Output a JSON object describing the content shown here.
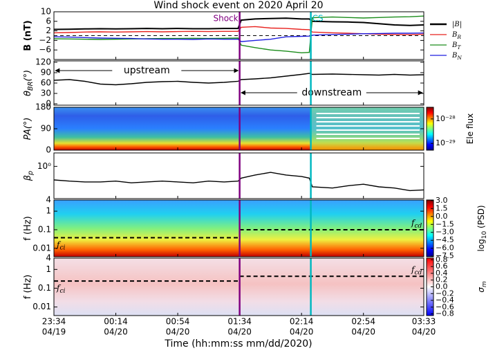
{
  "figure": {
    "title": "Wind shock event on 2020 April 20",
    "xlabel": "Time (hh:mm:ss mm/dd/2020)",
    "xlim": [
      "23:34",
      "03:33"
    ],
    "xticks": [
      {
        "time": "23:34",
        "date": "04/19"
      },
      {
        "time": "00:14",
        "date": "04/20"
      },
      {
        "time": "00:54",
        "date": "04/20"
      },
      {
        "time": "01:34",
        "date": "04/20"
      },
      {
        "time": "02:14",
        "date": "04/20"
      },
      {
        "time": "02:54",
        "date": "04/20"
      },
      {
        "time": "03:33",
        "date": "04/20"
      }
    ],
    "events": [
      {
        "label": "Shock",
        "time": "01:34",
        "color": "#800080"
      },
      {
        "label": "CS",
        "time": "02:20",
        "color": "#00b8c0"
      }
    ]
  },
  "chart_data": [
    {
      "type": "line",
      "ylabel": [
        {
          "t": "B (nT)"
        }
      ],
      "ylim": [
        -10,
        10
      ],
      "yticks": [
        10,
        6,
        2,
        {
          "value": -2,
          "label": "−2"
        },
        {
          "value": -6,
          "label": "−6"
        }
      ],
      "zero_line": true,
      "legend": "right-outside",
      "x": [
        "23:34",
        "23:44",
        "23:54",
        "00:04",
        "00:14",
        "00:24",
        "00:34",
        "00:44",
        "00:54",
        "01:04",
        "01:14",
        "01:24",
        "01:33",
        "01:35",
        "01:44",
        "01:54",
        "02:04",
        "02:14",
        "02:19",
        "02:21",
        "02:34",
        "02:44",
        "02:54",
        "03:04",
        "03:14",
        "03:24",
        "03:33"
      ],
      "series": [
        {
          "name": [
            {
              "t": "|B|"
            }
          ],
          "color": "#000000",
          "values": [
            2.6,
            2.7,
            2.8,
            2.9,
            2.8,
            2.9,
            3.0,
            2.9,
            3.0,
            2.9,
            2.9,
            3.0,
            3.0,
            6.5,
            7.0,
            7.2,
            7.3,
            7.0,
            7.0,
            6.0,
            5.8,
            5.7,
            5.5,
            5.0,
            4.5,
            4.3,
            4.5
          ]
        },
        {
          "name": [
            {
              "t": "B"
            },
            {
              "t": "R",
              "sub": true
            }
          ],
          "color": "#e8231f",
          "values": [
            1.2,
            1.3,
            1.5,
            1.6,
            1.5,
            1.6,
            1.7,
            1.6,
            1.7,
            1.8,
            1.7,
            1.8,
            1.8,
            3.5,
            3.8,
            3.2,
            3.0,
            2.6,
            2.5,
            1.5,
            1.2,
            1.0,
            0.8,
            0.6,
            0.5,
            0.4,
            0.6
          ]
        },
        {
          "name": [
            {
              "t": "B"
            },
            {
              "t": "T",
              "sub": true
            }
          ],
          "color": "#1a8c1a",
          "values": [
            -1.3,
            -1.4,
            -1.5,
            -1.6,
            -1.5,
            -1.4,
            -1.3,
            -1.2,
            -1.2,
            -1.1,
            -1.2,
            -1.1,
            -1.0,
            -4.0,
            -5.0,
            -6.0,
            -6.5,
            -7.2,
            -7.0,
            7.5,
            7.8,
            7.6,
            7.4,
            7.6,
            7.8,
            7.9,
            8.2
          ]
        },
        {
          "name": [
            {
              "t": "B"
            },
            {
              "t": "N",
              "sub": true
            }
          ],
          "color": "#1f1fe0",
          "values": [
            -0.5,
            -0.6,
            -0.8,
            -1.0,
            -1.1,
            -1.2,
            -1.4,
            -1.5,
            -1.5,
            -1.6,
            -1.4,
            -1.5,
            -1.5,
            -2.5,
            -2.0,
            -1.5,
            -0.5,
            -0.3,
            -0.2,
            0.2,
            0.5,
            0.6,
            0.8,
            0.9,
            1.0,
            1.0,
            1.1
          ]
        }
      ]
    },
    {
      "type": "line",
      "ylabel": [
        {
          "t": "θ"
        },
        {
          "t": "BR",
          "sub": true
        },
        {
          "t": "(°)"
        }
      ],
      "ylim": [
        -4,
        124
      ],
      "yticks": [
        0,
        30,
        60,
        90,
        120
      ],
      "x": [
        "23:34",
        "23:44",
        "23:54",
        "00:04",
        "00:14",
        "00:24",
        "00:34",
        "00:44",
        "00:54",
        "01:04",
        "01:14",
        "01:24",
        "01:33",
        "01:35",
        "01:44",
        "01:54",
        "02:04",
        "02:14",
        "02:19",
        "02:21",
        "02:34",
        "02:44",
        "02:54",
        "03:04",
        "03:14",
        "03:24",
        "03:33"
      ],
      "series": [
        {
          "color": "#000000",
          "values": [
            68,
            70,
            65,
            57,
            55,
            58,
            62,
            64,
            65,
            62,
            60,
            62,
            65,
            70,
            72,
            75,
            80,
            85,
            88,
            85,
            86,
            85,
            84,
            83,
            85,
            83,
            84
          ]
        }
      ],
      "annotations": [
        {
          "text": "upstream",
          "from": "23:34",
          "to": "01:34"
        },
        {
          "text": "downstream",
          "from": "01:34",
          "to": "03:33"
        }
      ]
    },
    {
      "type": "spectrogram",
      "ylabel": [
        {
          "t": "PA(°)"
        }
      ],
      "ylim": [
        0,
        180
      ],
      "yticks": [
        0,
        90,
        180
      ],
      "colorbar": {
        "label": [
          {
            "t": "Ele flux"
          }
        ],
        "log": true,
        "clim": [
          5.3e-30,
          3e-28
        ],
        "ticks": [
          {
            "value": 1e-28,
            "label": "10⁻²⁸"
          },
          {
            "value": 1e-29,
            "label": "10⁻²⁹"
          }
        ]
      }
    },
    {
      "type": "line",
      "ylabel": [
        {
          "t": "β"
        },
        {
          "t": "p",
          "sub": true
        }
      ],
      "log": true,
      "ylim": [
        0.15,
        2.2
      ],
      "yticks": [
        {
          "value": 1,
          "label": "10⁰"
        }
      ],
      "x": [
        "23:34",
        "23:44",
        "23:54",
        "00:04",
        "00:14",
        "00:24",
        "00:34",
        "00:44",
        "00:54",
        "01:04",
        "01:14",
        "01:24",
        "01:33",
        "01:35",
        "01:44",
        "01:54",
        "02:04",
        "02:14",
        "02:19",
        "02:21",
        "02:34",
        "02:44",
        "02:54",
        "03:04",
        "03:14",
        "03:24",
        "03:33"
      ],
      "series": [
        {
          "color": "#000000",
          "values": [
            0.45,
            0.42,
            0.4,
            0.4,
            0.42,
            0.38,
            0.4,
            0.42,
            0.4,
            0.38,
            0.42,
            0.4,
            0.42,
            0.5,
            0.6,
            0.7,
            0.6,
            0.55,
            0.5,
            0.3,
            0.28,
            0.32,
            0.35,
            0.3,
            0.28,
            0.24,
            0.25
          ]
        }
      ]
    },
    {
      "type": "spectrogram",
      "ylabel": [
        {
          "t": "f (Hz)"
        }
      ],
      "log": true,
      "ylim": [
        0.0035,
        4
      ],
      "yticks": [
        4,
        1,
        0.1,
        0.01
      ],
      "dashed_lines": [
        {
          "label": [
            {
              "t": "f"
            },
            {
              "t": "ci",
              "sub": true
            }
          ],
          "from": "23:34",
          "to": "01:34",
          "value": 0.037
        },
        {
          "label": [
            {
              "t": "f"
            },
            {
              "t": "cd",
              "sub": true
            }
          ],
          "from": "01:34",
          "to": "03:33",
          "value": 0.1
        }
      ],
      "colorbar": {
        "label": [
          {
            "t": "log"
          },
          {
            "t": "10",
            "sub": true
          },
          {
            "t": " (PSD)"
          }
        ],
        "clim": [
          -7.6,
          3.1
        ],
        "ticks": [
          {
            "value": 3,
            "label": "3.0"
          },
          1.5,
          {
            "value": 0,
            "label": "0.0"
          },
          {
            "value": -1.5,
            "label": "−1.5"
          },
          {
            "value": -3,
            "label": "−3.0"
          },
          {
            "value": -4.5,
            "label": "−4.5"
          },
          {
            "value": -6,
            "label": "−6.0"
          },
          {
            "value": -7.5,
            "label": "−7.5"
          }
        ]
      }
    },
    {
      "type": "spectrogram",
      "ylabel": [
        {
          "t": "f (Hz)"
        }
      ],
      "log": true,
      "ylim": [
        0.0035,
        4
      ],
      "yticks": [
        4,
        1,
        0.1,
        0.01
      ],
      "dashed_lines": [
        {
          "label": [
            {
              "t": "f"
            },
            {
              "t": "ci",
              "sub": true
            }
          ],
          "from": "23:34",
          "to": "01:34",
          "value": 0.24
        },
        {
          "label": [
            {
              "t": "f"
            },
            {
              "t": "cd",
              "sub": true
            }
          ],
          "from": "01:34",
          "to": "03:33",
          "value": 0.43
        }
      ],
      "colorbar": {
        "label": [
          {
            "t": "σ"
          },
          {
            "t": "m",
            "sub": true
          }
        ],
        "clim": [
          -0.85,
          0.85
        ],
        "diverging": true,
        "ticks": [
          0.8,
          0.6,
          0.4,
          0.2,
          {
            "value": 0,
            "label": "0.0"
          },
          {
            "value": -0.2,
            "label": "−0.2"
          },
          {
            "value": -0.4,
            "label": "−0.4"
          },
          {
            "value": -0.6,
            "label": "−0.6"
          },
          {
            "value": -0.8,
            "label": "−0.8"
          }
        ]
      }
    }
  ]
}
